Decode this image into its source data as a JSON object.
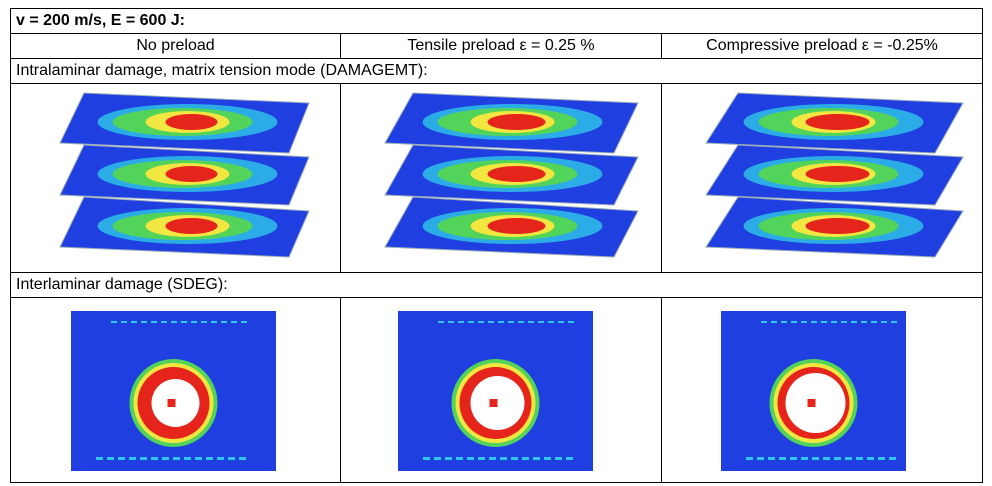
{
  "header": {
    "title": "v = 200 m/s, E = 600 J:"
  },
  "columns": [
    "No preload",
    "Tensile preload ε = 0.25 %",
    "Compressive preload ε = -0.25%"
  ],
  "sections": [
    {
      "title": "Intralaminar damage, matrix tension mode (DAMAGEMT):"
    },
    {
      "title": "Interlaminar damage (SDEG):"
    }
  ]
}
